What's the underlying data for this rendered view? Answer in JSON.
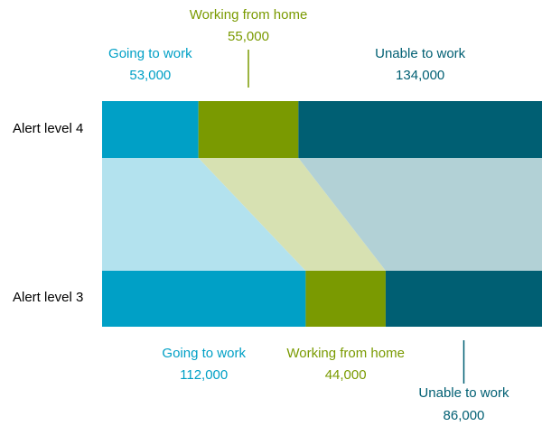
{
  "chart_data": {
    "type": "bar",
    "orientation": "horizontal",
    "stacked": true,
    "categories": [
      "Alert level 4",
      "Alert level 3"
    ],
    "series": [
      {
        "name": "Going to work",
        "color": "#00a0c6",
        "band_color": "#b3e2ee",
        "values": [
          53000,
          112000
        ],
        "value_labels": [
          "53,000",
          "112,000"
        ]
      },
      {
        "name": "Working from home",
        "color": "#7a9a01",
        "band_color": "#d7e1b2",
        "values": [
          55000,
          44000
        ],
        "value_labels": [
          "55,000",
          "44,000"
        ]
      },
      {
        "name": "Unable to work",
        "color": "#005f73",
        "band_color": "#b2d1d6",
        "values": [
          134000,
          86000
        ],
        "value_labels": [
          "134,000",
          "86,000"
        ]
      }
    ]
  }
}
